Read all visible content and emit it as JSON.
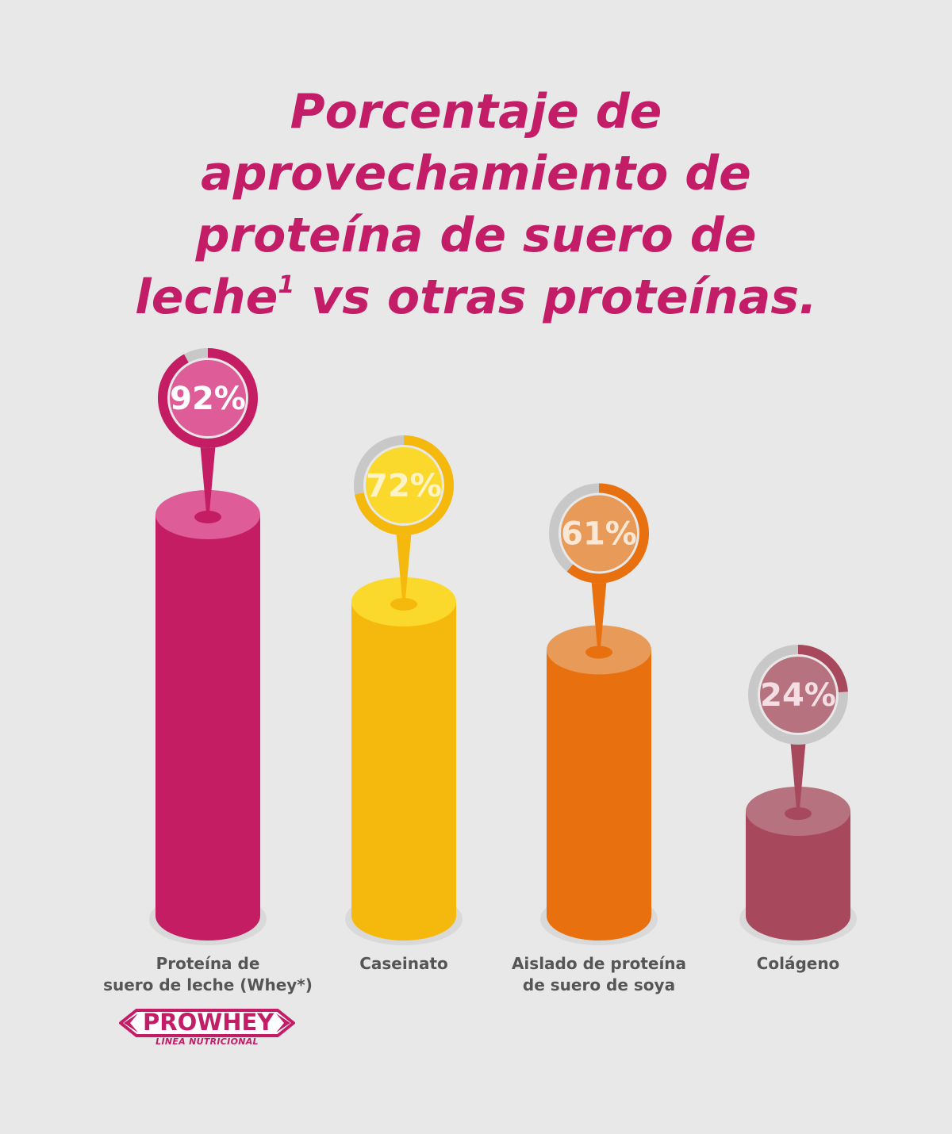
{
  "title": {
    "line1": "Porcentaje de",
    "line2": "aprovechamiento de",
    "line3": "proteína de suero de",
    "line4": "leche",
    "superscript": "1",
    "line4_rest": " vs otras proteínas."
  },
  "chart_data": {
    "type": "bar",
    "title": "Porcentaje de aprovechamiento de proteína de suero de leche¹ vs otras proteínas.",
    "categories": [
      "Proteína de suero de leche (Whey*)",
      "Caseinato",
      "Aislado de proteína de suero de soya",
      "Colágeno"
    ],
    "values": [
      92,
      72,
      61,
      24
    ],
    "value_labels": [
      "92%",
      "72%",
      "61%",
      "24%"
    ],
    "unit": "%",
    "ylim": [
      0,
      100
    ],
    "grid": false,
    "legend": "none",
    "colors": [
      {
        "body": "#c41d64",
        "top": "#de5c98",
        "ring": "#c41d64",
        "bubble": "#de5c98",
        "text": "#ffffff"
      },
      {
        "body": "#f5b90d",
        "top": "#fbd92c",
        "ring": "#f5b90d",
        "bubble": "#fbd92c",
        "text": "#fdf3c6"
      },
      {
        "body": "#e8700f",
        "top": "#e89a58",
        "ring": "#e8700f",
        "bubble": "#e89a58",
        "text": "#fbe7d6"
      },
      {
        "body": "#a8485c",
        "top": "#b6727f",
        "ring": "#a8485c",
        "bubble": "#b6727f",
        "text": "#f3dfe3"
      }
    ]
  },
  "labels": [
    {
      "line1": "Proteína de",
      "line2": "suero de leche (Whey*)"
    },
    {
      "line1": "Caseinato",
      "line2": ""
    },
    {
      "line1": "Aislado de proteína",
      "line2": "de suero de soya"
    },
    {
      "line1": "Colágeno",
      "line2": ""
    }
  ],
  "logo": {
    "brand": "PROWHEY",
    "tagline": "LÍNEA NUTRICIONAL",
    "color": "#c41d68"
  },
  "colors": {
    "background": "#e8e8e8",
    "title": "#c41d68",
    "label": "#555555",
    "ring_track": "#c8c8c8"
  }
}
